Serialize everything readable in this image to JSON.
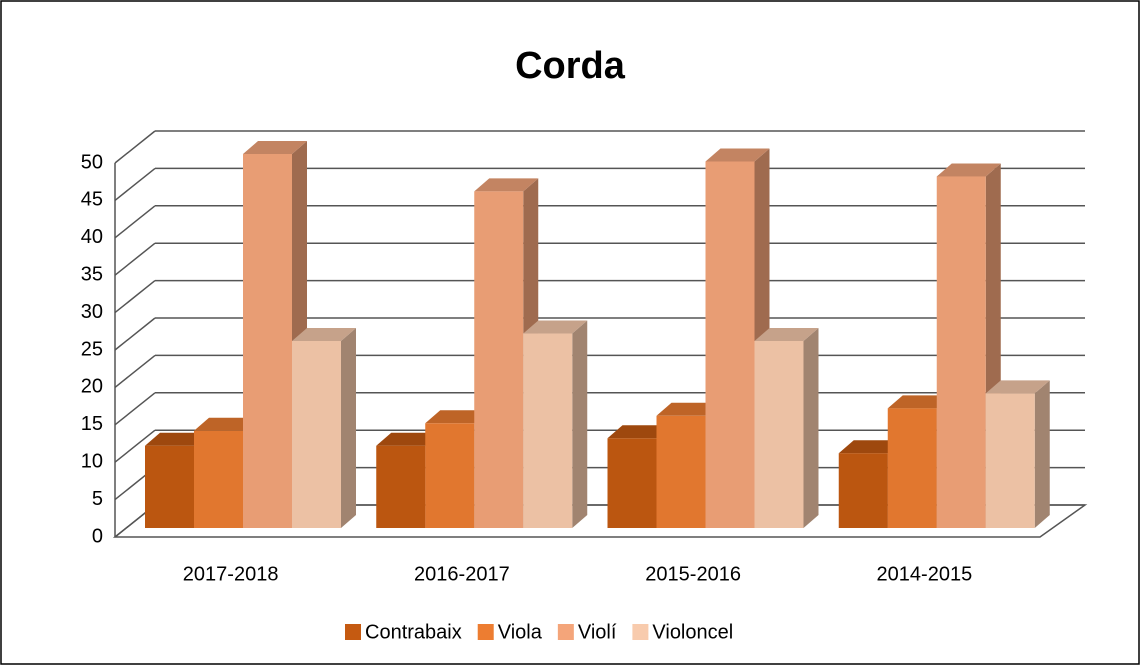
{
  "chart_data": {
    "type": "bar3d",
    "title": "Corda",
    "categories": [
      "2017-2018",
      "2016-2017",
      "2015-2016",
      "2014-2015"
    ],
    "series": [
      {
        "name": "Contrabaix",
        "color": "#c55a11",
        "values": [
          11,
          11,
          12,
          10
        ]
      },
      {
        "name": "Viola",
        "color": "#ed7d31",
        "values": [
          13,
          14,
          15,
          16
        ]
      },
      {
        "name": "Violí",
        "color": "#f4a57a",
        "values": [
          50,
          45,
          49,
          47
        ]
      },
      {
        "name": "Violoncel",
        "color": "#f8cbad",
        "values": [
          25,
          26,
          25,
          18
        ]
      }
    ],
    "ylim": [
      0,
      50
    ],
    "yticks": [
      0,
      5,
      10,
      15,
      20,
      25,
      30,
      35,
      40,
      45,
      50
    ],
    "grid": true,
    "legend": "bottom"
  }
}
